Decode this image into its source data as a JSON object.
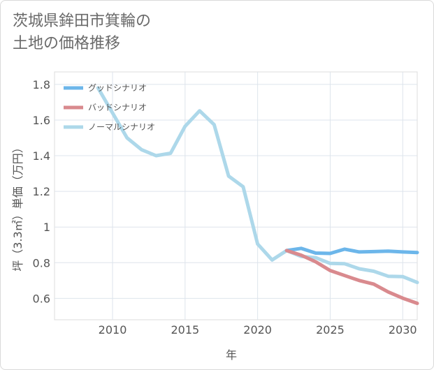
{
  "page": {
    "title_line1": "茨城県鉾田市箕輪の",
    "title_line2": "土地の価格推移"
  },
  "chart_data": {
    "type": "line",
    "xlabel": "年",
    "ylabel": "坪（3.3㎡）単価（万円）",
    "xlim": [
      2006,
      2031
    ],
    "ylim": [
      0.48,
      1.87
    ],
    "x_ticks": [
      2010,
      2015,
      2020,
      2025,
      2030
    ],
    "y_ticks": [
      0.6,
      0.8,
      1,
      1.2,
      1.4,
      1.6,
      1.8
    ],
    "y_tick_labels": [
      "0.6",
      "0.8",
      "1",
      "1.2",
      "1.4",
      "1.6",
      "1.8"
    ],
    "grid": true,
    "legend_position": "top-left",
    "series": [
      {
        "name": "グッドシナリオ",
        "color": "#6cb6ea",
        "x": [
          2022,
          2023,
          2024,
          2025,
          2026,
          2027,
          2028,
          2029,
          2030,
          2031
        ],
        "y": [
          0.868,
          0.88,
          0.854,
          0.852,
          0.876,
          0.86,
          0.862,
          0.865,
          0.86,
          0.857
        ]
      },
      {
        "name": "バッドシナリオ",
        "color": "#d98a8e",
        "x": [
          2022,
          2023,
          2024,
          2025,
          2026,
          2027,
          2028,
          2029,
          2030,
          2031
        ],
        "y": [
          0.868,
          0.842,
          0.805,
          0.756,
          0.728,
          0.7,
          0.68,
          0.636,
          0.601,
          0.572
        ]
      },
      {
        "name": "ノーマルシナリオ",
        "color": "#add8ea",
        "x": [
          2009,
          2010,
          2011,
          2012,
          2013,
          2014,
          2015,
          2016,
          2017,
          2018,
          2019,
          2020,
          2021,
          2022,
          2023,
          2024,
          2025,
          2026,
          2027,
          2028,
          2029,
          2030,
          2031
        ],
        "y": [
          1.78,
          1.64,
          1.5,
          1.434,
          1.4,
          1.414,
          1.565,
          1.652,
          1.574,
          1.286,
          1.226,
          0.905,
          0.815,
          0.868,
          0.835,
          0.828,
          0.796,
          0.794,
          0.766,
          0.752,
          0.724,
          0.722,
          0.689
        ]
      }
    ]
  }
}
